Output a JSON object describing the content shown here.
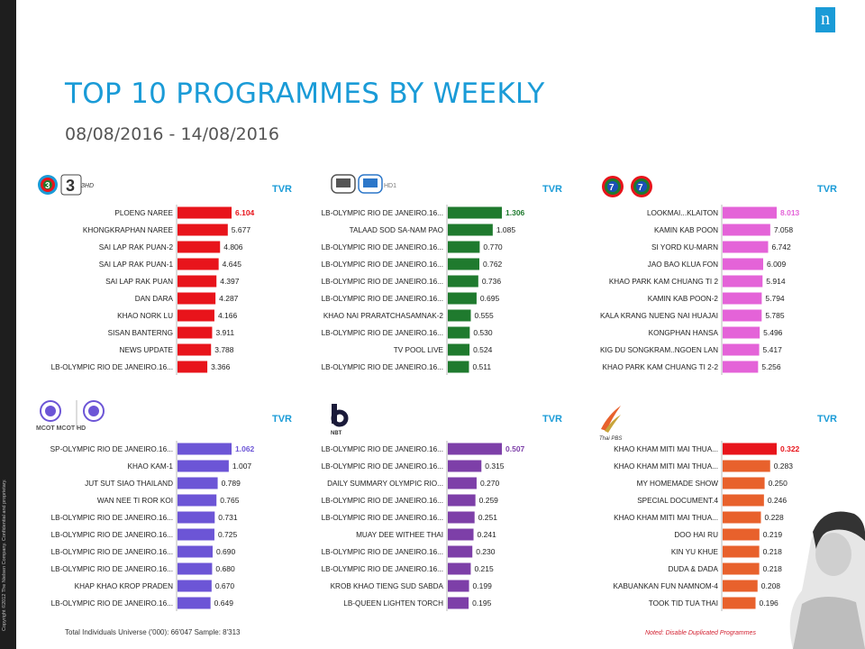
{
  "page": {
    "title": "TOP 10 PROGRAMMES BY WEEKLY",
    "date_range": "08/08/2016 - 14/08/2016",
    "logo_text": "n",
    "sidebar_text": "Copyright ©2012 The Nielsen Company. Confidential and proprietary.",
    "footnote": "Total Individuals Universe ('000): 66'047 Sample: 8'313",
    "noted": "Noted: Disable Duplicated Programmes"
  },
  "chart_data": [
    {
      "type": "bar",
      "channel": "3 / 3HD",
      "color": "#e8141b",
      "top_color": "#e8141b",
      "tvr_label": "TVR",
      "logo_text": "3HD",
      "categories": [
        "PLOENG NAREE",
        "KHONGKRAPHAN NAREE",
        "SAI LAP RAK PUAN-2",
        "SAI LAP RAK PUAN-1",
        "SAI LAP RAK PUAN",
        "DAN DARA",
        "KHAO NORK LU",
        "SISAN BANTERNG",
        "NEWS UPDATE",
        "LB-OLYMPIC RIO DE JANEIRO.16..."
      ],
      "values": [
        6.104,
        5.677,
        4.806,
        4.645,
        4.397,
        4.287,
        4.166,
        3.911,
        3.788,
        3.366
      ],
      "labels": [
        "6.104",
        "5.677",
        "4.806",
        "4.645",
        "4.397",
        "4.287",
        "4.166",
        "3.911",
        "3.788",
        "3.366"
      ]
    },
    {
      "type": "bar",
      "channel": "CH7 HD1",
      "color": "#1f7a2e",
      "top_color": "#1f7a2e",
      "tvr_label": "TVR",
      "logo_text": "HD1",
      "categories": [
        "LB-OLYMPIC RIO DE JANEIRO.16...",
        "TALAAD SOD SA-NAM PAO",
        "LB-OLYMPIC RIO DE JANEIRO.16...",
        "LB-OLYMPIC RIO DE JANEIRO.16...",
        "LB-OLYMPIC RIO DE JANEIRO.16...",
        "LB-OLYMPIC RIO DE JANEIRO.16...",
        "KHAO NAI PRARATCHASAMNAK-2",
        "LB-OLYMPIC RIO DE JANEIRO.16...",
        "TV POOL LIVE",
        "LB-OLYMPIC RIO DE JANEIRO.16..."
      ],
      "values": [
        1.306,
        1.085,
        0.77,
        0.762,
        0.736,
        0.695,
        0.555,
        0.53,
        0.524,
        0.511
      ],
      "labels": [
        "1.306",
        "1.085",
        "0.770",
        "0.762",
        "0.736",
        "0.695",
        "0.555",
        "0.530",
        "0.524",
        "0.511"
      ]
    },
    {
      "type": "bar",
      "channel": "CH7 HD",
      "color": "#e463d8",
      "top_color": "#e463d8",
      "tvr_label": "TVR",
      "logo_text": "7",
      "categories": [
        "LOOKMAI...KLAITON",
        "KAMIN KAB POON",
        "SI YORD KU-MARN",
        "JAO BAO KLUA FON",
        "KHAO PARK KAM CHUANG TI 2",
        "KAMIN KAB POON-2",
        "KALA KRANG NUENG NAI HUAJAI",
        "KONGPHAN HANSA",
        "KIG DU SONGKRAM..NGOEN LAN",
        "KHAO PARK KAM CHUANG TI 2-2"
      ],
      "values": [
        8.013,
        7.058,
        6.742,
        6.009,
        5.914,
        5.794,
        5.785,
        5.496,
        5.417,
        5.256
      ],
      "labels": [
        "8.013",
        "7.058",
        "6.742",
        "6.009",
        "5.914",
        "5.794",
        "5.785",
        "5.496",
        "5.417",
        "5.256"
      ]
    },
    {
      "type": "bar",
      "channel": "MCOT HD",
      "color": "#6c55d6",
      "top_color": "#6c55d6",
      "tvr_label": "TVR",
      "logo_text": "MCOT  MCOT HD",
      "categories": [
        "SP-OLYMPIC RIO DE JANEIRO.16...",
        "KHAO KAM-1",
        "JUT SUT SIAO THAILAND",
        "WAN NEE TI ROR KOI",
        "LB-OLYMPIC RIO DE JANEIRO.16...",
        "LB-OLYMPIC RIO DE JANEIRO.16...",
        "LB-OLYMPIC RIO DE JANEIRO.16...",
        "LB-OLYMPIC RIO DE JANEIRO.16...",
        "KHAP KHAO KROP PRADEN",
        "LB-OLYMPIC RIO DE JANEIRO.16..."
      ],
      "values": [
        1.062,
        1.007,
        0.789,
        0.765,
        0.731,
        0.725,
        0.69,
        0.68,
        0.67,
        0.649
      ],
      "labels": [
        "1.062",
        "1.007",
        "0.789",
        "0.765",
        "0.731",
        "0.725",
        "0.690",
        "0.680",
        "0.670",
        "0.649"
      ]
    },
    {
      "type": "bar",
      "channel": "NBT",
      "color": "#7d3fa8",
      "top_color": "#7d3fa8",
      "tvr_label": "TVR",
      "logo_text": "NBT",
      "categories": [
        "LB-OLYMPIC RIO DE JANEIRO.16...",
        "LB-OLYMPIC RIO DE JANEIRO.16...",
        "DAILY SUMMARY OLYMPIC RIO...",
        "LB-OLYMPIC RIO DE JANEIRO.16...",
        "LB-OLYMPIC RIO DE JANEIRO.16...",
        "MUAY DEE WITHEE THAI",
        "LB-OLYMPIC RIO DE JANEIRO.16...",
        "LB-OLYMPIC RIO DE JANEIRO.16...",
        "KROB KHAO TIENG SUD SABDA",
        "LB-QUEEN LIGHTEN TORCH"
      ],
      "values": [
        0.507,
        0.315,
        0.27,
        0.259,
        0.251,
        0.241,
        0.23,
        0.215,
        0.199,
        0.195
      ],
      "labels": [
        "0.507",
        "0.315",
        "0.270",
        "0.259",
        "0.251",
        "0.241",
        "0.230",
        "0.215",
        "0.199",
        "0.195"
      ]
    },
    {
      "type": "bar",
      "channel": "Thai PBS",
      "color": "#e8612c",
      "top_color": "#e8141b",
      "tvr_label": "TVR",
      "logo_text": "Thai PBS",
      "categories": [
        "KHAO KHAM MITI MAI THUA...",
        "KHAO KHAM MITI MAI THUA...",
        "MY HOMEMADE SHOW",
        "SPECIAL DOCUMENT.4",
        "KHAO KHAM MITI MAI THUA...",
        "DOO HAI RU",
        "KIN YU KHUE",
        "DUDA & DADA",
        "KABUANKAN FUN NAMNOM-4",
        "TOOK TID TUA THAI"
      ],
      "values": [
        0.322,
        0.283,
        0.25,
        0.246,
        0.228,
        0.219,
        0.218,
        0.218,
        0.208,
        0.196
      ],
      "labels": [
        "0.322",
        "0.283",
        "0.250",
        "0.246",
        "0.228",
        "0.219",
        "0.218",
        "0.218",
        "0.208",
        "0.196"
      ]
    }
  ]
}
